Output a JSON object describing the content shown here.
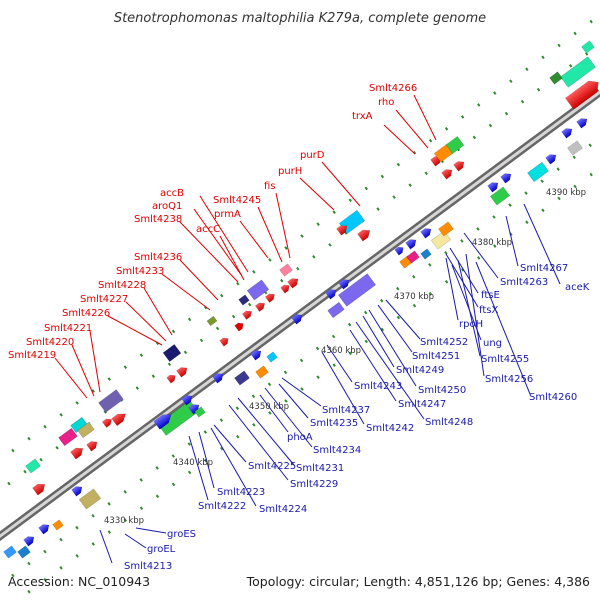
{
  "title": "Stenotrophomonas maltophilia K279a, complete genome",
  "footer": {
    "accession": "Accession: NC_010943",
    "summary": "Topology: circular; Length: 4,851,126 bp; Genes: 4,386"
  },
  "colors": {
    "upper_labels": "#dd0000",
    "lower_labels": "#1a1aaa",
    "backbone": "#8c8c8c",
    "tick": "#2e8b2e"
  },
  "scale_labels": [
    "4330 kbp",
    "4340 kbp",
    "4350 kbp",
    "4360 kbp",
    "4370 kbp",
    "4380 kbp",
    "4390 kbp"
  ],
  "upper_labels": [
    "Smlt4219",
    "Smlt4220",
    "Smlt4221",
    "Smlt4226",
    "Smlt4227",
    "Smlt4228",
    "Smlt4233",
    "Smlt4236",
    "Smlt4238",
    "accC",
    "aroQ1",
    "accB",
    "prmA",
    "Smlt4245",
    "fis",
    "purH",
    "purD",
    "trxA",
    "rho",
    "Smlt4266"
  ],
  "lower_labels": [
    "Smlt4213",
    "groEL",
    "groES",
    "Smlt4222",
    "Smlt4223",
    "Smlt4224",
    "Smlt4225",
    "Smlt4229",
    "Smlt4231",
    "phoA",
    "Smlt4234",
    "Smlt4235",
    "Smlt4237",
    "Smlt4242",
    "Smlt4243",
    "Smlt4247",
    "Smlt4248",
    "Smlt4249",
    "Smlt4250",
    "Smlt4251",
    "Smlt4252",
    "ung",
    "rpoH",
    "Smlt4255",
    "Smlt4256",
    "ftsX",
    "ftsE",
    "Smlt4263",
    "Smlt4267",
    "aceK",
    "Smlt4260"
  ]
}
